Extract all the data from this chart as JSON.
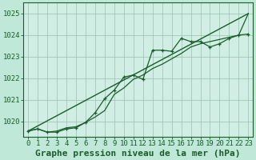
{
  "title": "Graphe pression niveau de la mer (hPa)",
  "background_color": "#c0e8d8",
  "plot_bg_color": "#d0eee4",
  "grid_color": "#9abfb0",
  "line_color": "#1a5c2a",
  "xlim": [
    -0.5,
    23.5
  ],
  "ylim": [
    1019.3,
    1025.5
  ],
  "yticks": [
    1020,
    1021,
    1022,
    1023,
    1024,
    1025
  ],
  "xticks": [
    0,
    1,
    2,
    3,
    4,
    5,
    6,
    7,
    8,
    9,
    10,
    11,
    12,
    13,
    14,
    15,
    16,
    17,
    18,
    19,
    20,
    21,
    22,
    23
  ],
  "series1_x": [
    0,
    1,
    2,
    3,
    4,
    5,
    6,
    7,
    8,
    9,
    10,
    11,
    12,
    13,
    14,
    15,
    16,
    17,
    18,
    19,
    20,
    21,
    22,
    23
  ],
  "series1_y": [
    1019.55,
    1019.65,
    1019.5,
    1019.5,
    1019.65,
    1019.7,
    1019.95,
    1020.4,
    1021.05,
    1021.45,
    1022.05,
    1022.15,
    1021.95,
    1023.3,
    1023.3,
    1023.25,
    1023.85,
    1023.7,
    1023.7,
    1023.45,
    1023.6,
    1023.85,
    1024.0,
    1024.05
  ],
  "series2_x": [
    0,
    1,
    2,
    3,
    4,
    5,
    6,
    7,
    8,
    9,
    10,
    11,
    12,
    13,
    14,
    15,
    16,
    17,
    18,
    19,
    20,
    21,
    22,
    23
  ],
  "series2_y": [
    1019.55,
    1019.65,
    1019.5,
    1019.55,
    1019.7,
    1019.75,
    1019.95,
    1020.2,
    1020.5,
    1021.25,
    1021.55,
    1021.95,
    1022.15,
    1022.45,
    1022.65,
    1022.9,
    1023.15,
    1023.45,
    1023.6,
    1023.7,
    1023.8,
    1023.9,
    1024.0,
    1025.0
  ],
  "series3_x": [
    0,
    23
  ],
  "series3_y": [
    1019.55,
    1025.0
  ],
  "title_fontsize": 8,
  "tick_fontsize": 6.5
}
